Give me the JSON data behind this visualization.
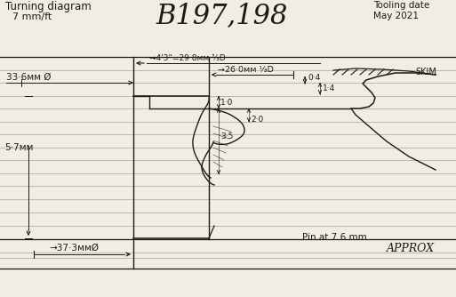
{
  "title": "Turning diagram",
  "subtitle": "7 mm/ft",
  "main_title": "B197,198",
  "tooling_date_line1": "Tooling date",
  "tooling_date_line2": "May 2021",
  "bg_color": "#f2ede3",
  "line_color": "#1a1a1a",
  "hline_color": "#aaa9a0",
  "label_33_6": "33·6мм Ø",
  "label_26_0": "→26·0мм ⅓D",
  "label_4_3": "→4'3”=29·8мм ⅔D",
  "label_0_4": "0·4",
  "label_1_4": "1·4",
  "label_1_0": "1·0",
  "label_3_5": "3·5",
  "label_2_0": "2·0",
  "label_5_7": "5·7мм",
  "label_skim": "SKIM",
  "label_37_3": "→37·3ммØ",
  "label_pin": "Pin at 7.6 mm",
  "label_approx": "APPROX"
}
